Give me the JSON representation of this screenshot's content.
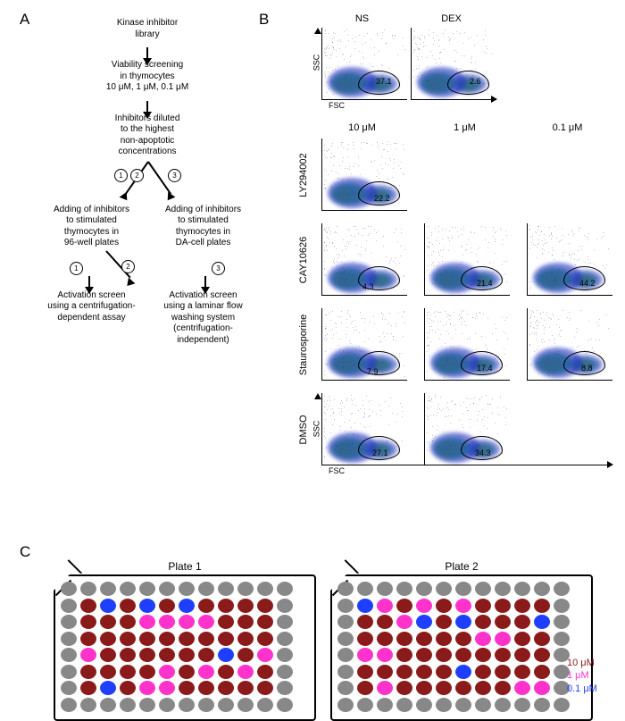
{
  "panels": {
    "A": "A",
    "B": "B",
    "C": "C"
  },
  "flowchart": {
    "n1": "Kinase inhibitor\nlibrary",
    "n2": "Viability screening\nin thymocytes\n10 μM, 1 μM, 0.1 μM",
    "n3": "Inhibitors diluted\nto the highest\nnon-apoptotic\nconcentrations",
    "n4": "Adding of inhibitors\nto stimulated\nthymocytes in\n96-well plates",
    "n5": "Adding of inhibitors\nto stimulated\nthymocytes in\nDA-cell plates",
    "n6": "Activation screen\nusing a centrifugation-\ndependent assay",
    "n7": "Activation screen\nusing a laminar flow\nwashing system\n(centrifugation-\nindependent)",
    "c1": "1",
    "c2": "2",
    "c3": "3"
  },
  "facs": {
    "axes": {
      "x": "FSC",
      "y": "SSC"
    },
    "top_cols": [
      "NS",
      "DEX"
    ],
    "cols": [
      "10 μM",
      "1 μM",
      "0.1 μM"
    ],
    "rows": [
      "LY294002",
      "CAY10626",
      "Staurosporine",
      "DMSO"
    ],
    "gates": {
      "NS": "37.1",
      "DEX": "2.6",
      "LY_10": "22.2",
      "CAY_10": "4.3",
      "CAY_1": "21.4",
      "CAY_01": "44.2",
      "ST_10": "7.9",
      "ST_1": "17.4",
      "ST_01": "8.8",
      "DMSO_10": "27.1",
      "DMSO_1": "34.3"
    },
    "density_colors": {
      "outer": "#2030c0",
      "mid": "#20b060",
      "inner": "#f0e010",
      "core": "#e03020"
    }
  },
  "platesC": {
    "titles": [
      "Plate 1",
      "Plate 2"
    ],
    "colors": {
      "c10": "#8b1a1a",
      "c1": "#ff33cc",
      "c01": "#1e3fff",
      "edge": "#888888"
    },
    "legend": [
      "10 μM",
      "1 μM",
      "0.1 μM"
    ],
    "plate1": [
      [
        "e",
        "e",
        "e",
        "e",
        "e",
        "e",
        "e",
        "e",
        "e",
        "e",
        "e",
        "e"
      ],
      [
        "e",
        "10",
        "01",
        "10",
        "01",
        "10",
        "01",
        "10",
        "10",
        "10",
        "10",
        "e"
      ],
      [
        "e",
        "10",
        "10",
        "10",
        "1",
        "1",
        "1",
        "1",
        "10",
        "10",
        "10",
        "e"
      ],
      [
        "e",
        "10",
        "10",
        "10",
        "10",
        "10",
        "10",
        "10",
        "10",
        "10",
        "10",
        "e"
      ],
      [
        "e",
        "1",
        "10",
        "10",
        "10",
        "10",
        "10",
        "10",
        "01",
        "10",
        "1",
        "e"
      ],
      [
        "e",
        "10",
        "10",
        "10",
        "10",
        "1",
        "10",
        "1",
        "10",
        "1",
        "10",
        "e"
      ],
      [
        "e",
        "10",
        "01",
        "10",
        "1",
        "1",
        "10",
        "10",
        "10",
        "10",
        "10",
        "e"
      ],
      [
        "e",
        "e",
        "e",
        "e",
        "e",
        "e",
        "e",
        "e",
        "e",
        "e",
        "e",
        "e"
      ]
    ],
    "plate2": [
      [
        "e",
        "e",
        "e",
        "e",
        "e",
        "e",
        "e",
        "e",
        "e",
        "e",
        "e",
        "e"
      ],
      [
        "e",
        "01",
        "1",
        "10",
        "1",
        "10",
        "1",
        "10",
        "10",
        "10",
        "10",
        "e"
      ],
      [
        "e",
        "10",
        "10",
        "1",
        "01",
        "10",
        "01",
        "10",
        "10",
        "10",
        "01",
        "e"
      ],
      [
        "e",
        "10",
        "10",
        "10",
        "10",
        "10",
        "10",
        "1",
        "1",
        "10",
        "10",
        "e"
      ],
      [
        "e",
        "1",
        "1",
        "10",
        "10",
        "10",
        "10",
        "10",
        "10",
        "10",
        "10",
        "e"
      ],
      [
        "e",
        "10",
        "10",
        "10",
        "10",
        "10",
        "01",
        "10",
        "10",
        "10",
        "10",
        "e"
      ],
      [
        "e",
        "10",
        "1",
        "10",
        "10",
        "10",
        "10",
        "10",
        "10",
        "1",
        "1",
        "e"
      ],
      [
        "e",
        "e",
        "e",
        "e",
        "e",
        "e",
        "e",
        "e",
        "e",
        "e",
        "e",
        "e"
      ]
    ]
  }
}
